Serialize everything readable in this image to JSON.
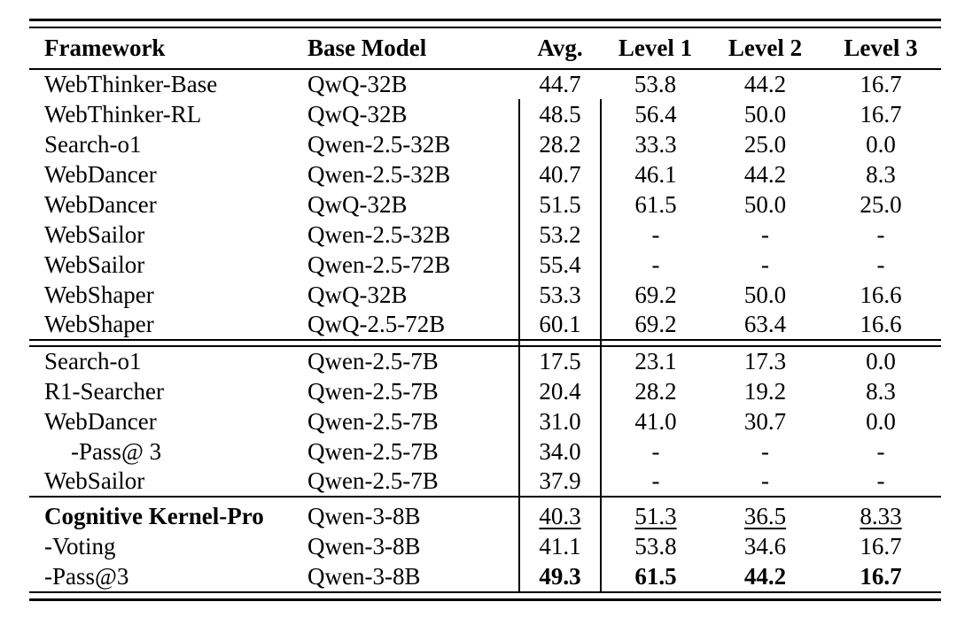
{
  "page": {
    "background_color": "#ffffff",
    "text_color": "#000000",
    "description": "Benchmark results table comparing agent frameworks across difficulty levels"
  },
  "table": {
    "columns": [
      "Framework",
      "Base Model",
      "Avg.",
      "Level 1",
      "Level 2",
      "Level 3"
    ],
    "sections": [
      {
        "separator_after": "double",
        "rows": [
          {
            "framework": "WebThinker-Base",
            "base_model": "QwQ-32B",
            "values": [
              "44.7",
              "53.8",
              "44.2",
              "16.7"
            ],
            "no_vline": true
          },
          {
            "framework": "WebThinker-RL",
            "base_model": "QwQ-32B",
            "values": [
              "48.5",
              "56.4",
              "50.0",
              "16.7"
            ]
          },
          {
            "framework": "Search-o1",
            "base_model": "Qwen-2.5-32B",
            "values": [
              "28.2",
              "33.3",
              "25.0",
              "0.0"
            ]
          },
          {
            "framework": "WebDancer",
            "base_model": "Qwen-2.5-32B",
            "values": [
              "40.7",
              "46.1",
              "44.2",
              "8.3"
            ]
          },
          {
            "framework": "WebDancer",
            "base_model": "QwQ-32B",
            "values": [
              "51.5",
              "61.5",
              "50.0",
              "25.0"
            ]
          },
          {
            "framework": "WebSailor",
            "base_model": "Qwen-2.5-32B",
            "values": [
              "53.2",
              "-",
              "-",
              "-"
            ]
          },
          {
            "framework": "WebSailor",
            "base_model": "Qwen-2.5-72B",
            "values": [
              "55.4",
              "-",
              "-",
              "-"
            ]
          },
          {
            "framework": "WebShaper",
            "base_model": "QwQ-32B",
            "values": [
              "53.3",
              "69.2",
              "50.0",
              "16.6"
            ]
          },
          {
            "framework": "WebShaper",
            "base_model": "QwQ-2.5-72B",
            "values": [
              "60.1",
              "69.2",
              "63.4",
              "16.6"
            ]
          }
        ]
      },
      {
        "separator_after": "single",
        "rows": [
          {
            "framework": "Search-o1",
            "base_model": "Qwen-2.5-7B",
            "values": [
              "17.5",
              "23.1",
              "17.3",
              "0.0"
            ]
          },
          {
            "framework": "R1-Searcher",
            "base_model": "Qwen-2.5-7B",
            "values": [
              "20.4",
              "28.2",
              "19.2",
              "8.3"
            ]
          },
          {
            "framework": "WebDancer",
            "base_model": "Qwen-2.5-7B",
            "values": [
              "31.0",
              "41.0",
              "30.7",
              "0.0"
            ]
          },
          {
            "framework": "-Pass@ 3",
            "base_model": "Qwen-2.5-7B",
            "values": [
              "34.0",
              "-",
              "-",
              "-"
            ],
            "indent": true
          },
          {
            "framework": "WebSailor",
            "base_model": "Qwen-2.5-7B",
            "values": [
              "37.9",
              "-",
              "-",
              "-"
            ]
          }
        ]
      },
      {
        "separator_after": null,
        "rows": [
          {
            "framework": "Cognitive Kernel-Pro",
            "base_model": "Qwen-3-8B",
            "values": [
              "40.3",
              "51.3",
              "36.5",
              "8.33"
            ],
            "framework_bold": true,
            "values_underline": true
          },
          {
            "framework": "-Voting",
            "base_model": "Qwen-3-8B",
            "values": [
              "41.1",
              "53.8",
              "34.6",
              "16.7"
            ]
          },
          {
            "framework": "-Pass@3",
            "base_model": "Qwen-3-8B",
            "values": [
              "49.3",
              "61.5",
              "44.2",
              "16.7"
            ],
            "values_bold": true
          }
        ]
      }
    ]
  }
}
